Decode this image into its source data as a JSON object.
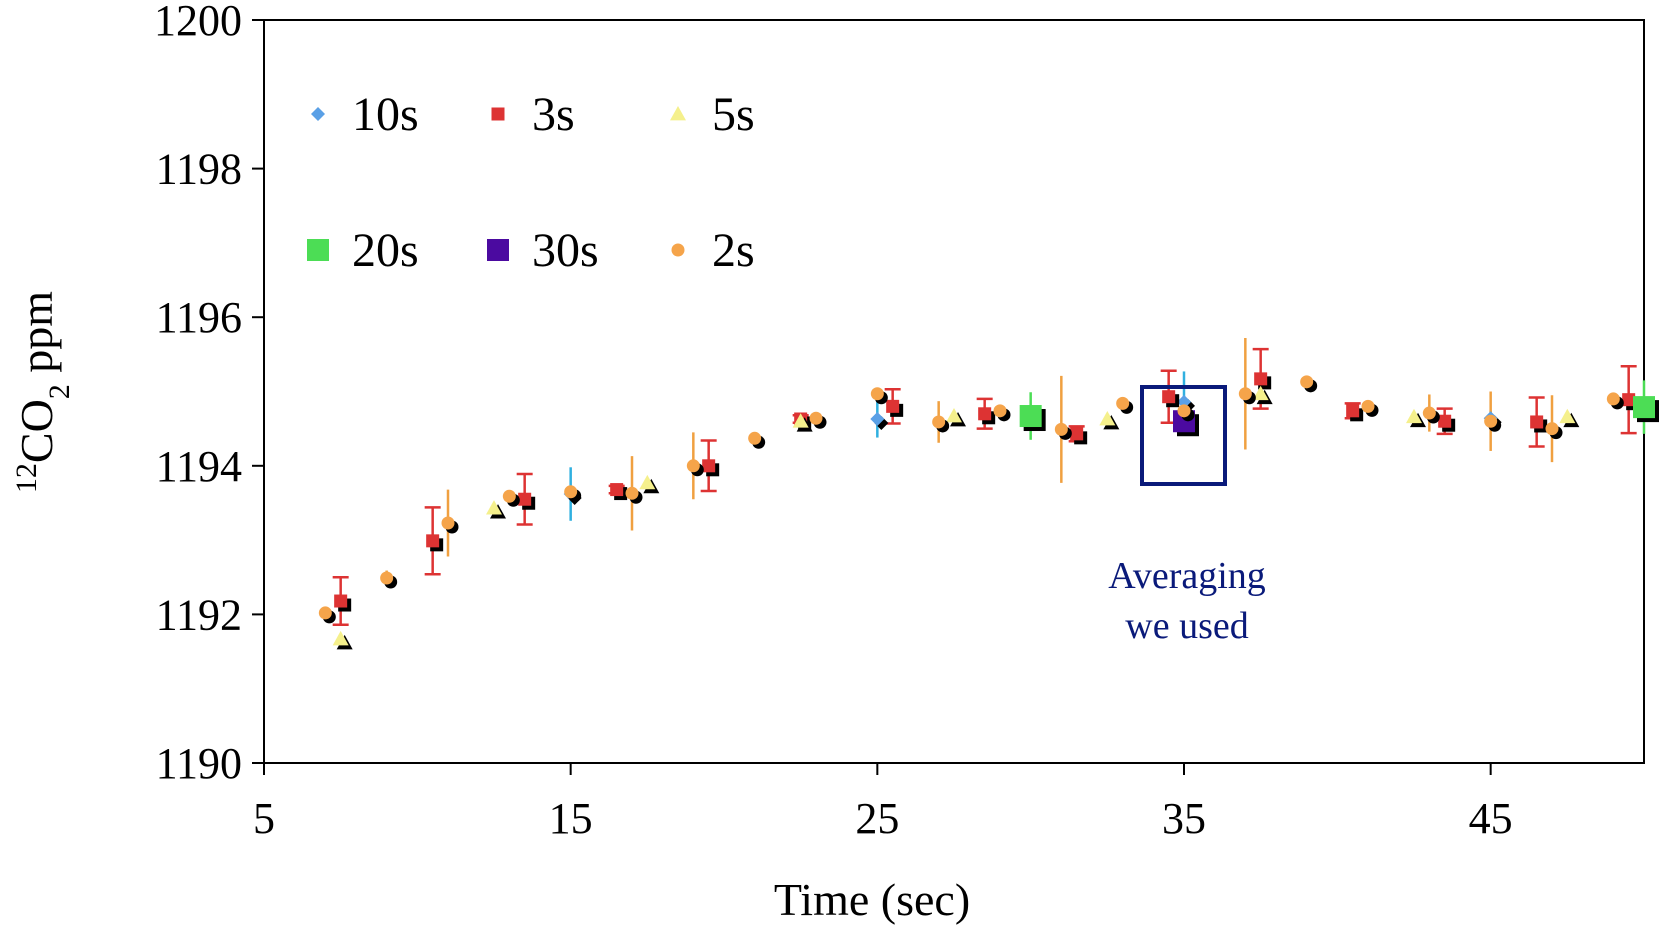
{
  "chart_data": {
    "type": "scatter",
    "xlabel": "Time (sec)",
    "ylabel_parts": [
      "12",
      "CO",
      "2",
      " ppm"
    ],
    "xlim": [
      5,
      50
    ],
    "xticks": [
      5,
      15,
      25,
      35,
      45
    ],
    "ylim": [
      1190,
      1200
    ],
    "yticks": [
      1190,
      1192,
      1194,
      1196,
      1198,
      1200
    ],
    "annotation": [
      "Averaging",
      "we used"
    ],
    "series": [
      {
        "name": "10s",
        "color": "#5aa0e6",
        "error_color": "#30b0e0",
        "marker": "diamond",
        "x": [
          15,
          25,
          35,
          45
        ],
        "values": [
          1193.62,
          1194.63,
          1194.86,
          1194.64
        ],
        "errors": [
          0.36,
          0.25,
          0.41,
          0.1
        ]
      },
      {
        "name": "3s",
        "color": "#dd3333",
        "error_color": "#dd3333",
        "marker": "square",
        "error_caps": true,
        "x": [
          7.5,
          10.5,
          13.5,
          16.5,
          19.5,
          22.5,
          25.5,
          28.5,
          31.5,
          34.5,
          37.5,
          40.5,
          43.5,
          46.5,
          49.5
        ],
        "values": [
          1192.18,
          1192.99,
          1193.55,
          1193.68,
          1194.0,
          1194.63,
          1194.8,
          1194.7,
          1194.43,
          1194.93,
          1195.17,
          1194.74,
          1194.6,
          1194.59,
          1194.89
        ],
        "errors": [
          0.32,
          0.45,
          0.34,
          0.05,
          0.34,
          0.05,
          0.23,
          0.2,
          0.1,
          0.35,
          0.4,
          0.1,
          0.17,
          0.33,
          0.45
        ]
      },
      {
        "name": "5s",
        "color": "#f5f08c",
        "marker": "triangle",
        "x": [
          7.5,
          12.5,
          17.5,
          22.5,
          27.5,
          32.5,
          37.5,
          42.5,
          47.5
        ],
        "values": [
          1191.67,
          1193.43,
          1193.77,
          1194.6,
          1194.67,
          1194.63,
          1194.97,
          1194.66,
          1194.66
        ]
      },
      {
        "name": "20s",
        "color": "#4cdd55",
        "error_color": "#4cdd55",
        "marker": "large-square",
        "x": [
          30,
          50
        ],
        "values": [
          1194.67,
          1194.79
        ],
        "errors": [
          0.32,
          0.36
        ]
      },
      {
        "name": "30s",
        "color": "#4b0aa0",
        "error_color": "#4b0aa0",
        "marker": "large-square",
        "x": [
          35
        ],
        "values": [
          1194.6
        ],
        "errors": [
          0.1
        ]
      },
      {
        "name": "2s",
        "color": "#f5a44a",
        "error_color": "#f0a040",
        "marker": "circle",
        "x": [
          7,
          9,
          11,
          13,
          15,
          17,
          19,
          21,
          23,
          25,
          27,
          29,
          31,
          33,
          35,
          37,
          39,
          41,
          43,
          45,
          47,
          49
        ],
        "values": [
          1192.02,
          1192.49,
          1193.23,
          1193.59,
          1193.65,
          1193.63,
          1194.0,
          1194.37,
          1194.64,
          1194.97,
          1194.59,
          1194.74,
          1194.49,
          1194.84,
          1194.74,
          1194.97,
          1195.13,
          1194.8,
          1194.71,
          1194.6,
          1194.5,
          1194.9
        ],
        "errors": [
          0.05,
          0.1,
          0.45,
          0.05,
          0.05,
          0.5,
          0.45,
          0.05,
          0.05,
          0.05,
          0.28,
          0.05,
          0.72,
          0.05,
          0.05,
          0.75,
          0.05,
          0.05,
          0.25,
          0.4,
          0.45,
          0.05
        ]
      }
    ]
  }
}
